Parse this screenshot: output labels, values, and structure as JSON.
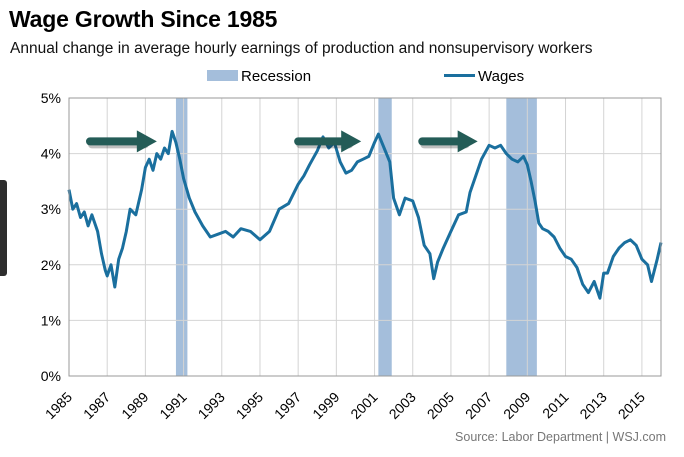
{
  "header": {
    "title": "Wage Growth Since 1985",
    "subtitle": "Annual change in average hourly earnings of production and nonsupervisory workers",
    "source": "Source: Labor Department  |  WSJ.com"
  },
  "colors": {
    "line": "#1a6f9e",
    "recession": "#a4bedb",
    "arrow": "#245c57",
    "grid": "#d4d4d4"
  },
  "chart_data": {
    "type": "line",
    "xlim": [
      1985,
      2016
    ],
    "ylim": [
      0,
      5
    ],
    "grid": true,
    "legend_position": "top",
    "legend": [
      {
        "label": "Recession",
        "kind": "band"
      },
      {
        "label": "Wages",
        "kind": "line"
      }
    ],
    "x_tick_labels": [
      "1985",
      "1987",
      "1989",
      "1991",
      "1993",
      "1995",
      "1997",
      "1999",
      "2001",
      "2003",
      "2005",
      "2007",
      "2009",
      "2011",
      "2013",
      "2015"
    ],
    "y_tick_labels": [
      "0%",
      "1%",
      "2%",
      "3%",
      "4%",
      "5%"
    ],
    "x_ticks": [
      1985,
      1987,
      1989,
      1991,
      1993,
      1995,
      1997,
      1999,
      2001,
      2003,
      2005,
      2007,
      2009,
      2011,
      2013,
      2015
    ],
    "y_ticks": [
      0,
      1,
      2,
      3,
      4,
      5
    ],
    "recessions": [
      [
        1990.6,
        1991.2
      ],
      [
        2001.2,
        2001.9
      ],
      [
        2007.9,
        2009.5
      ]
    ],
    "annotations": [
      {
        "type": "arrow",
        "x_start": 1986.1,
        "x_end": 1989.6,
        "y": 4.22
      },
      {
        "type": "arrow",
        "x_start": 1997.0,
        "x_end": 2000.3,
        "y": 4.22
      },
      {
        "type": "arrow",
        "x_start": 2003.5,
        "x_end": 2006.4,
        "y": 4.22
      }
    ],
    "series": [
      {
        "name": "Wages",
        "x": [
          1985.0,
          1985.2,
          1985.4,
          1985.6,
          1985.8,
          1986.0,
          1986.2,
          1986.5,
          1986.7,
          1986.9,
          1987.0,
          1987.2,
          1987.4,
          1987.6,
          1987.8,
          1988.0,
          1988.2,
          1988.5,
          1988.8,
          1989.0,
          1989.2,
          1989.4,
          1989.6,
          1989.8,
          1990.0,
          1990.2,
          1990.4,
          1990.6,
          1990.8,
          1991.0,
          1991.3,
          1991.6,
          1992.0,
          1992.4,
          1992.8,
          1993.2,
          1993.6,
          1994.0,
          1994.5,
          1995.0,
          1995.5,
          1996.0,
          1996.5,
          1997.0,
          1997.3,
          1997.6,
          1998.0,
          1998.3,
          1998.6,
          1998.9,
          1999.2,
          1999.5,
          1999.8,
          2000.1,
          2000.4,
          2000.7,
          2001.0,
          2001.2,
          2001.5,
          2001.8,
          2002.0,
          2002.3,
          2002.6,
          2003.0,
          2003.3,
          2003.6,
          2003.9,
          2004.1,
          2004.3,
          2004.6,
          2005.0,
          2005.4,
          2005.8,
          2006.0,
          2006.3,
          2006.6,
          2007.0,
          2007.3,
          2007.6,
          2007.9,
          2008.2,
          2008.5,
          2008.8,
          2009.0,
          2009.2,
          2009.4,
          2009.6,
          2009.8,
          2010.1,
          2010.4,
          2010.7,
          2011.0,
          2011.3,
          2011.6,
          2011.9,
          2012.2,
          2012.5,
          2012.8,
          2013.0,
          2013.2,
          2013.5,
          2013.8,
          2014.1,
          2014.4,
          2014.7,
          2015.0,
          2015.3,
          2015.5,
          2015.8,
          2016.0
        ],
        "y": [
          3.35,
          3.0,
          3.1,
          2.85,
          2.95,
          2.7,
          2.9,
          2.6,
          2.2,
          1.9,
          1.8,
          2.0,
          1.6,
          2.1,
          2.3,
          2.6,
          3.0,
          2.9,
          3.35,
          3.75,
          3.9,
          3.7,
          4.0,
          3.9,
          4.1,
          4.0,
          4.4,
          4.2,
          3.9,
          3.55,
          3.2,
          2.95,
          2.7,
          2.5,
          2.55,
          2.6,
          2.5,
          2.65,
          2.6,
          2.45,
          2.6,
          3.0,
          3.1,
          3.45,
          3.6,
          3.8,
          4.05,
          4.3,
          4.1,
          4.2,
          3.85,
          3.65,
          3.7,
          3.85,
          3.9,
          3.95,
          4.2,
          4.35,
          4.1,
          3.85,
          3.2,
          2.9,
          3.2,
          3.15,
          2.85,
          2.35,
          2.2,
          1.75,
          2.05,
          2.3,
          2.6,
          2.9,
          2.95,
          3.3,
          3.6,
          3.9,
          4.15,
          4.1,
          4.15,
          4.0,
          3.9,
          3.85,
          3.95,
          3.8,
          3.5,
          3.15,
          2.75,
          2.65,
          2.6,
          2.5,
          2.3,
          2.15,
          2.1,
          1.95,
          1.65,
          1.5,
          1.7,
          1.4,
          1.85,
          1.85,
          2.15,
          2.3,
          2.4,
          2.45,
          2.35,
          2.1,
          2.0,
          1.7,
          2.1,
          2.4
        ]
      }
    ]
  }
}
